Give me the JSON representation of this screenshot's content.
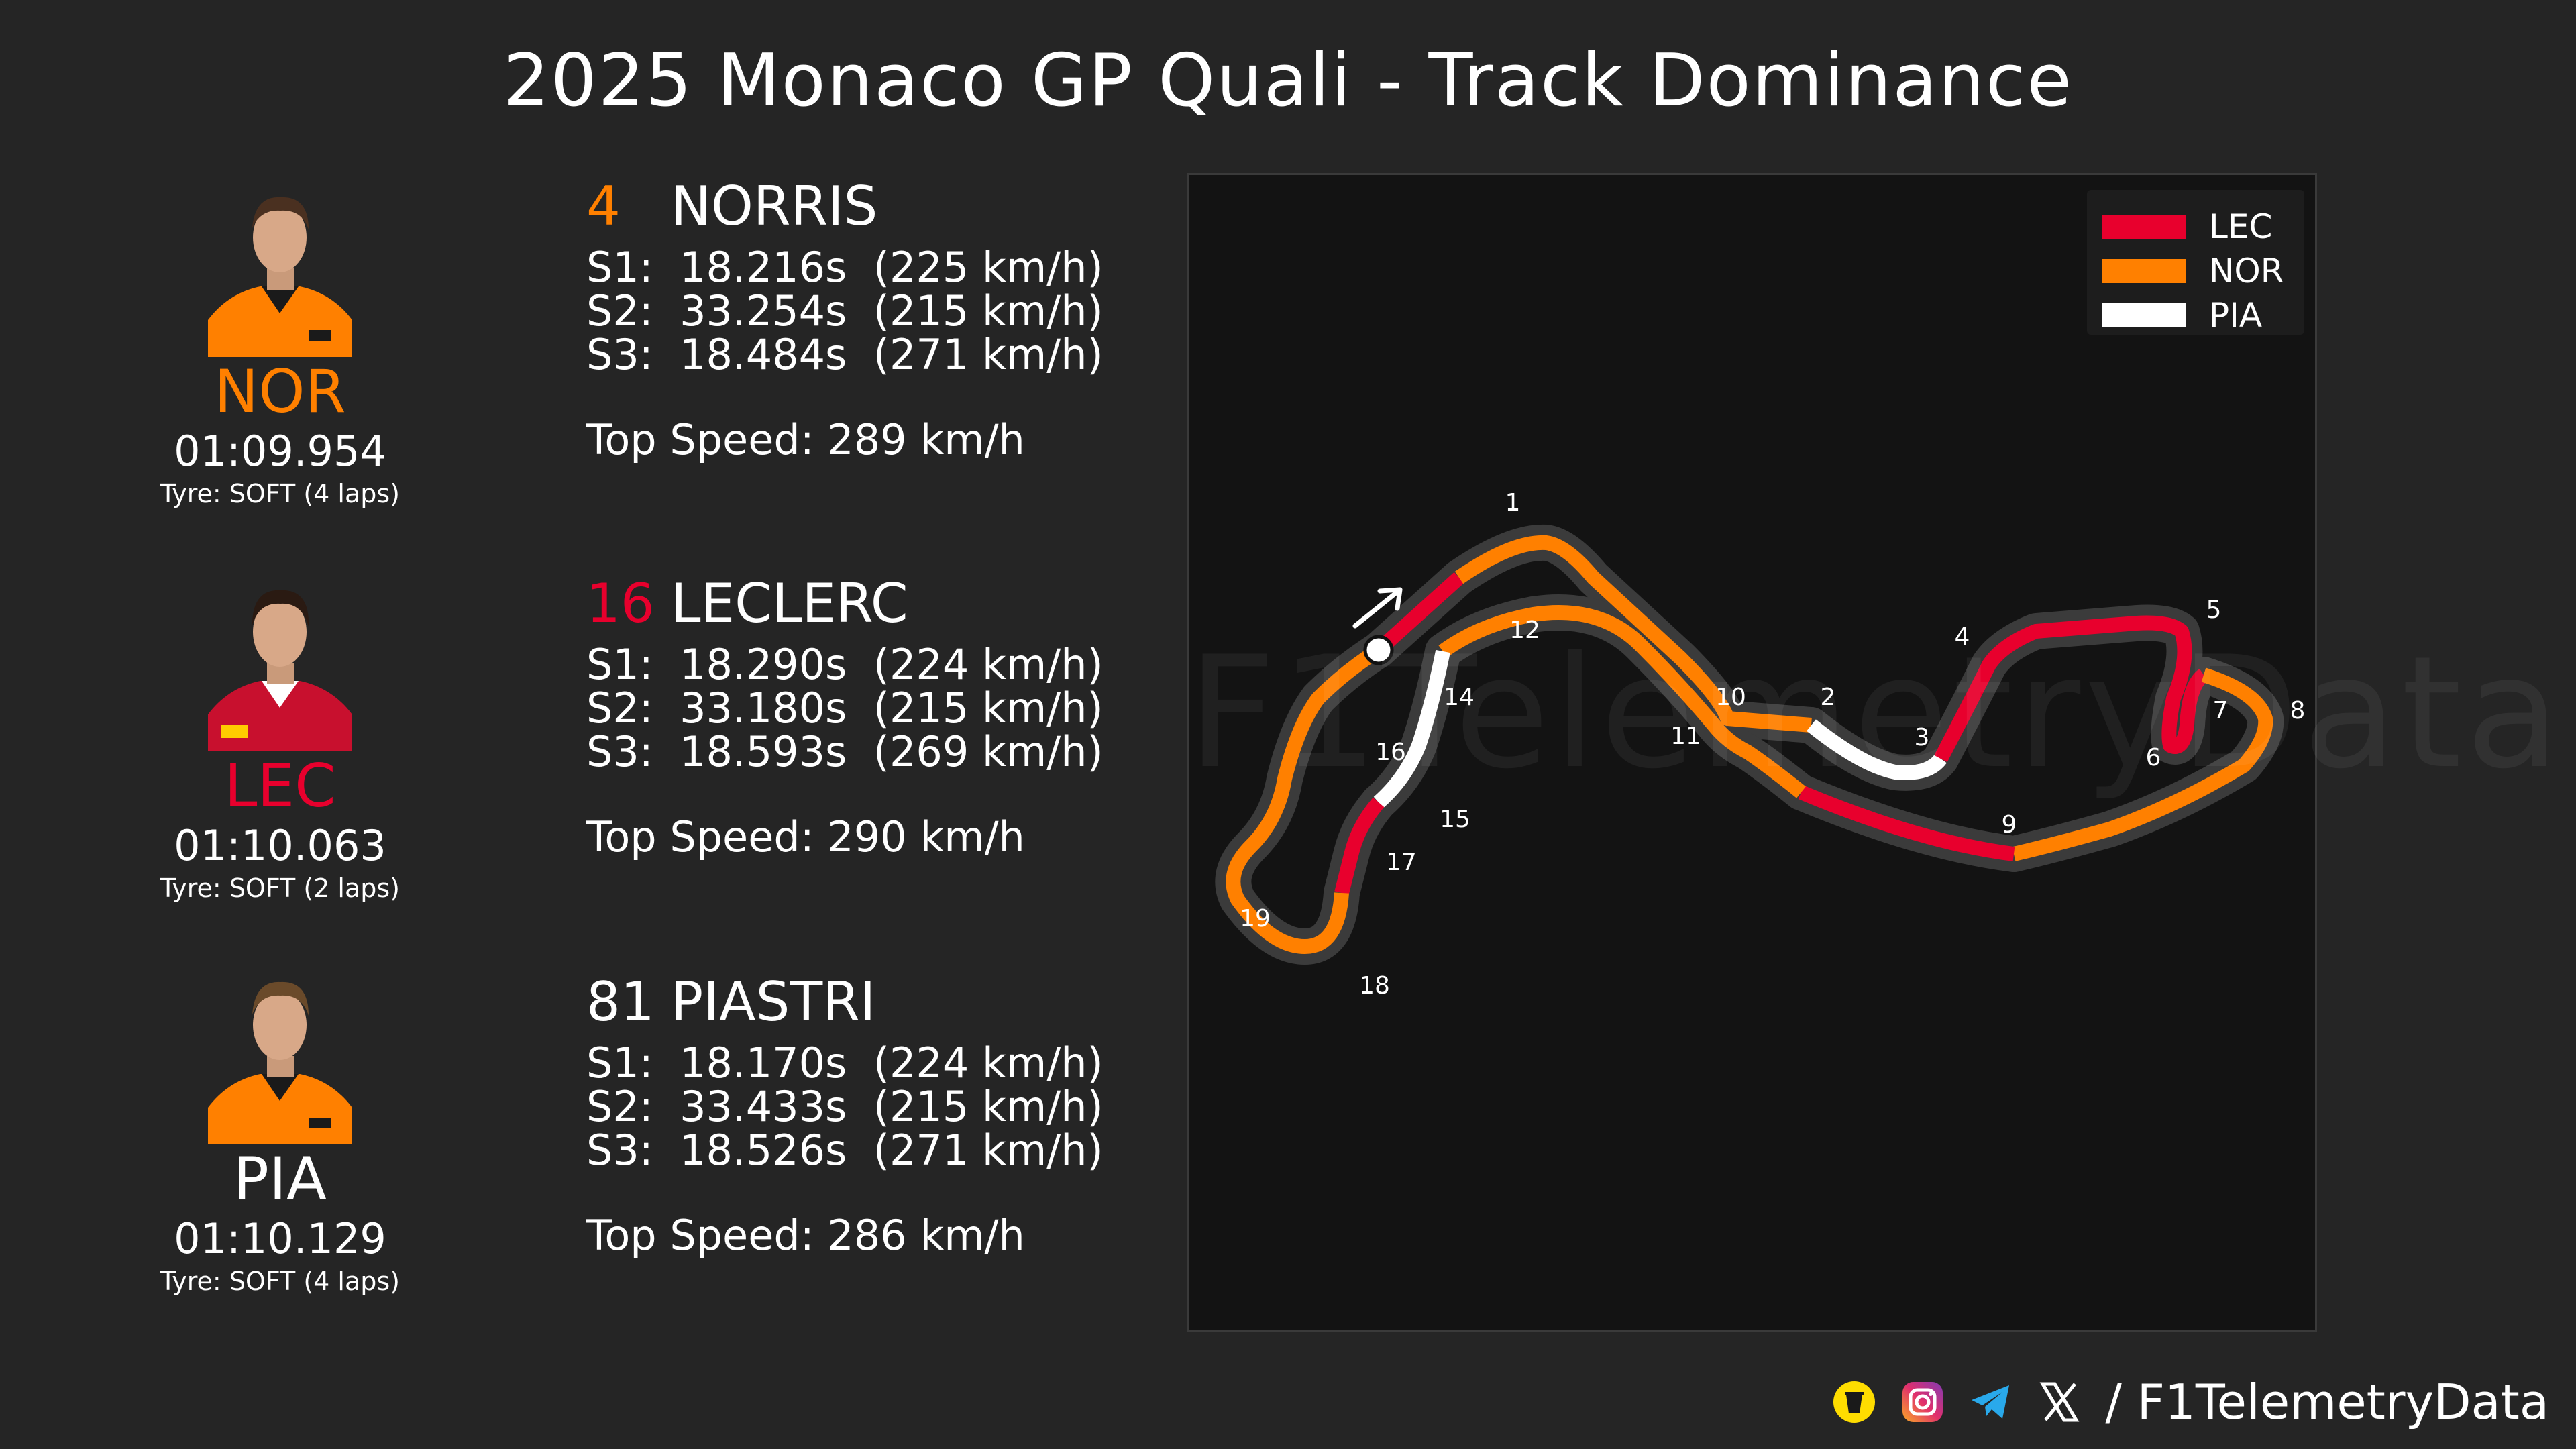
{
  "title": "2025 Monaco GP Quali - Track Dominance",
  "drivers": [
    {
      "abbr": "NOR",
      "number": "4",
      "name": "NORRIS",
      "color": "#ff8000",
      "lap_time": "01:09.954",
      "tyre": "Tyre: SOFT (4 laps)",
      "s1": "S1:  18.216s  (225 km/h)",
      "s2": "S2:  33.254s  (215 km/h)",
      "s3": "S3:  18.484s  (271 km/h)",
      "top_speed": "Top Speed: 289 km/h"
    },
    {
      "abbr": "LEC",
      "number": "16",
      "name": "LECLERC",
      "color": "#e8002d",
      "lap_time": "01:10.063",
      "tyre": "Tyre: SOFT (2 laps)",
      "s1": "S1:  18.290s  (224 km/h)",
      "s2": "S2:  33.180s  (215 km/h)",
      "s3": "S3:  18.593s  (269 km/h)",
      "top_speed": "Top Speed: 290 km/h"
    },
    {
      "abbr": "PIA",
      "number": "81",
      "name": "PIASTRI",
      "color": "#ffffff",
      "lap_time": "01:10.129",
      "tyre": "Tyre: SOFT (4 laps)",
      "s1": "S1:  18.170s  (224 km/h)",
      "s2": "S2:  33.433s  (215 km/h)",
      "s3": "S3:  18.526s  (271 km/h)",
      "top_speed": "Top Speed: 286 km/h"
    }
  ],
  "chart_data": {
    "type": "track-map",
    "legend": [
      {
        "label": "LEC",
        "color": "#e8002d"
      },
      {
        "label": "NOR",
        "color": "#ff8000"
      },
      {
        "label": "PIA",
        "color": "#ffffff"
      }
    ],
    "corners": [
      "1",
      "2",
      "3",
      "4",
      "5",
      "6",
      "7",
      "8",
      "9",
      "10",
      "11",
      "12",
      "14",
      "15",
      "16",
      "17",
      "18",
      "19"
    ],
    "segments": [
      {
        "driver": "LEC"
      },
      {
        "driver": "NOR"
      },
      {
        "driver": "PIA"
      },
      {
        "driver": "LEC"
      },
      {
        "driver": "NOR"
      },
      {
        "driver": "LEC"
      },
      {
        "driver": "NOR"
      },
      {
        "driver": "PIA"
      },
      {
        "driver": "LEC"
      },
      {
        "driver": "NOR"
      }
    ]
  },
  "watermark": "F1TelemetryData",
  "footer": {
    "handle": "/ F1TelemetryData",
    "icons": [
      "buymeacoffee-icon",
      "instagram-icon",
      "telegram-icon",
      "x-icon"
    ]
  }
}
